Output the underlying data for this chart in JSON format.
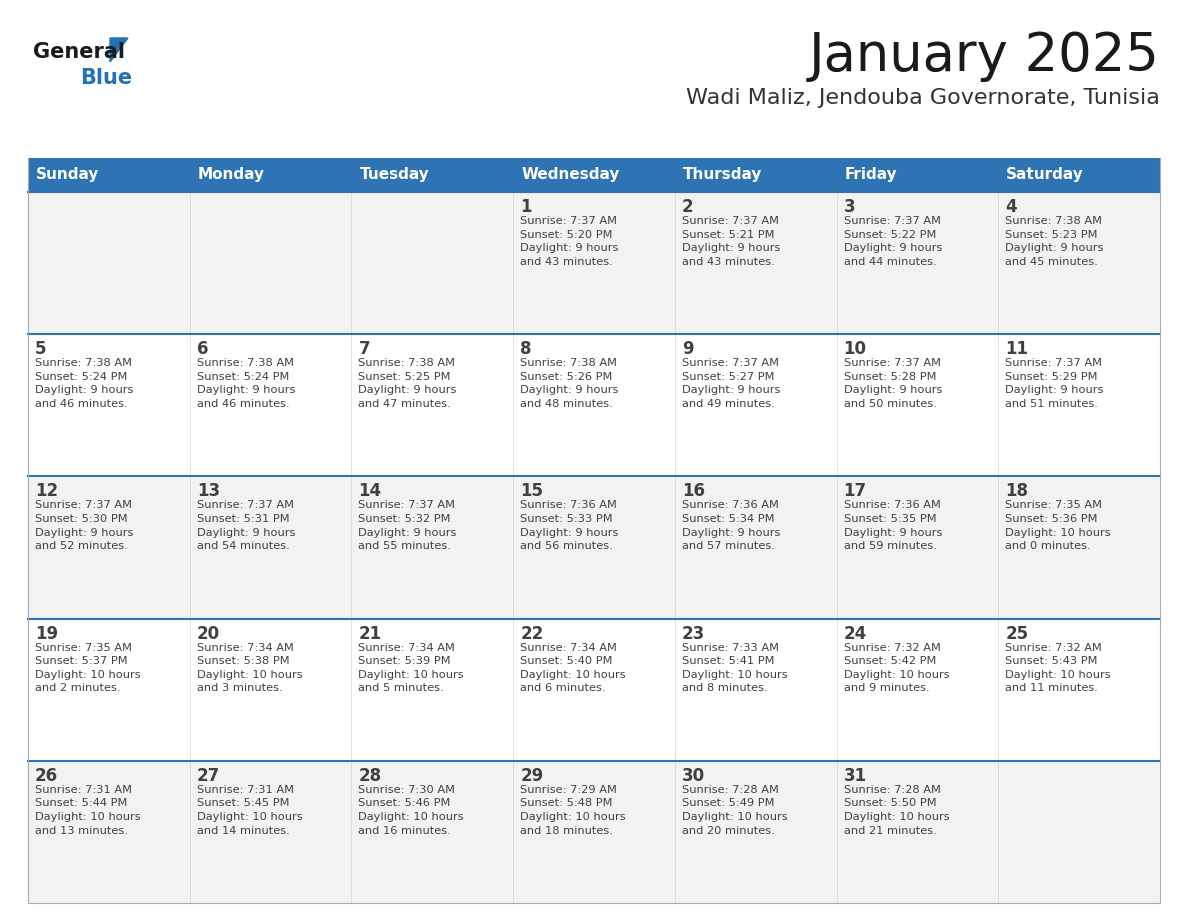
{
  "title": "January 2025",
  "subtitle": "Wadi Maliz, Jendouba Governorate, Tunisia",
  "header_bg": "#2E74B5",
  "header_text_color": "#FFFFFF",
  "cell_bg_odd": "#F2F2F2",
  "cell_bg_even": "#FFFFFF",
  "day_headers": [
    "Sunday",
    "Monday",
    "Tuesday",
    "Wednesday",
    "Thursday",
    "Friday",
    "Saturday"
  ],
  "calendar_data": [
    [
      {
        "day": "",
        "text": ""
      },
      {
        "day": "",
        "text": ""
      },
      {
        "day": "",
        "text": ""
      },
      {
        "day": "1",
        "text": "Sunrise: 7:37 AM\nSunset: 5:20 PM\nDaylight: 9 hours\nand 43 minutes."
      },
      {
        "day": "2",
        "text": "Sunrise: 7:37 AM\nSunset: 5:21 PM\nDaylight: 9 hours\nand 43 minutes."
      },
      {
        "day": "3",
        "text": "Sunrise: 7:37 AM\nSunset: 5:22 PM\nDaylight: 9 hours\nand 44 minutes."
      },
      {
        "day": "4",
        "text": "Sunrise: 7:38 AM\nSunset: 5:23 PM\nDaylight: 9 hours\nand 45 minutes."
      }
    ],
    [
      {
        "day": "5",
        "text": "Sunrise: 7:38 AM\nSunset: 5:24 PM\nDaylight: 9 hours\nand 46 minutes."
      },
      {
        "day": "6",
        "text": "Sunrise: 7:38 AM\nSunset: 5:24 PM\nDaylight: 9 hours\nand 46 minutes."
      },
      {
        "day": "7",
        "text": "Sunrise: 7:38 AM\nSunset: 5:25 PM\nDaylight: 9 hours\nand 47 minutes."
      },
      {
        "day": "8",
        "text": "Sunrise: 7:38 AM\nSunset: 5:26 PM\nDaylight: 9 hours\nand 48 minutes."
      },
      {
        "day": "9",
        "text": "Sunrise: 7:37 AM\nSunset: 5:27 PM\nDaylight: 9 hours\nand 49 minutes."
      },
      {
        "day": "10",
        "text": "Sunrise: 7:37 AM\nSunset: 5:28 PM\nDaylight: 9 hours\nand 50 minutes."
      },
      {
        "day": "11",
        "text": "Sunrise: 7:37 AM\nSunset: 5:29 PM\nDaylight: 9 hours\nand 51 minutes."
      }
    ],
    [
      {
        "day": "12",
        "text": "Sunrise: 7:37 AM\nSunset: 5:30 PM\nDaylight: 9 hours\nand 52 minutes."
      },
      {
        "day": "13",
        "text": "Sunrise: 7:37 AM\nSunset: 5:31 PM\nDaylight: 9 hours\nand 54 minutes."
      },
      {
        "day": "14",
        "text": "Sunrise: 7:37 AM\nSunset: 5:32 PM\nDaylight: 9 hours\nand 55 minutes."
      },
      {
        "day": "15",
        "text": "Sunrise: 7:36 AM\nSunset: 5:33 PM\nDaylight: 9 hours\nand 56 minutes."
      },
      {
        "day": "16",
        "text": "Sunrise: 7:36 AM\nSunset: 5:34 PM\nDaylight: 9 hours\nand 57 minutes."
      },
      {
        "day": "17",
        "text": "Sunrise: 7:36 AM\nSunset: 5:35 PM\nDaylight: 9 hours\nand 59 minutes."
      },
      {
        "day": "18",
        "text": "Sunrise: 7:35 AM\nSunset: 5:36 PM\nDaylight: 10 hours\nand 0 minutes."
      }
    ],
    [
      {
        "day": "19",
        "text": "Sunrise: 7:35 AM\nSunset: 5:37 PM\nDaylight: 10 hours\nand 2 minutes."
      },
      {
        "day": "20",
        "text": "Sunrise: 7:34 AM\nSunset: 5:38 PM\nDaylight: 10 hours\nand 3 minutes."
      },
      {
        "day": "21",
        "text": "Sunrise: 7:34 AM\nSunset: 5:39 PM\nDaylight: 10 hours\nand 5 minutes."
      },
      {
        "day": "22",
        "text": "Sunrise: 7:34 AM\nSunset: 5:40 PM\nDaylight: 10 hours\nand 6 minutes."
      },
      {
        "day": "23",
        "text": "Sunrise: 7:33 AM\nSunset: 5:41 PM\nDaylight: 10 hours\nand 8 minutes."
      },
      {
        "day": "24",
        "text": "Sunrise: 7:32 AM\nSunset: 5:42 PM\nDaylight: 10 hours\nand 9 minutes."
      },
      {
        "day": "25",
        "text": "Sunrise: 7:32 AM\nSunset: 5:43 PM\nDaylight: 10 hours\nand 11 minutes."
      }
    ],
    [
      {
        "day": "26",
        "text": "Sunrise: 7:31 AM\nSunset: 5:44 PM\nDaylight: 10 hours\nand 13 minutes."
      },
      {
        "day": "27",
        "text": "Sunrise: 7:31 AM\nSunset: 5:45 PM\nDaylight: 10 hours\nand 14 minutes."
      },
      {
        "day": "28",
        "text": "Sunrise: 7:30 AM\nSunset: 5:46 PM\nDaylight: 10 hours\nand 16 minutes."
      },
      {
        "day": "29",
        "text": "Sunrise: 7:29 AM\nSunset: 5:48 PM\nDaylight: 10 hours\nand 18 minutes."
      },
      {
        "day": "30",
        "text": "Sunrise: 7:28 AM\nSunset: 5:49 PM\nDaylight: 10 hours\nand 20 minutes."
      },
      {
        "day": "31",
        "text": "Sunrise: 7:28 AM\nSunset: 5:50 PM\nDaylight: 10 hours\nand 21 minutes."
      },
      {
        "day": "",
        "text": ""
      }
    ]
  ],
  "logo_general_color": "#1a1a1a",
  "logo_blue_color": "#2471B5",
  "divider_color": "#2E74B5",
  "text_color": "#404040",
  "figsize": [
    11.88,
    9.18
  ],
  "dpi": 100
}
